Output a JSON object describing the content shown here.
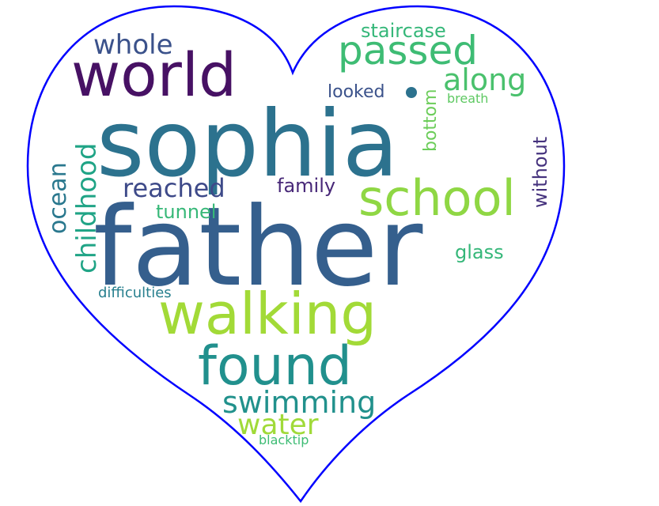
{
  "heart": {
    "stroke_color": "#0000ff"
  },
  "words": [
    {
      "id": "sophia",
      "text": "sophia",
      "color": "#2c728e"
    },
    {
      "id": "father",
      "text": "father",
      "color": "#355f8d"
    },
    {
      "id": "world",
      "text": "world",
      "color": "#471164"
    },
    {
      "id": "passed",
      "text": "passed",
      "color": "#3ebc74"
    },
    {
      "id": "school",
      "text": "school",
      "color": "#8fd744"
    },
    {
      "id": "walking",
      "text": "walking",
      "color": "#a2da37"
    },
    {
      "id": "found",
      "text": "found",
      "color": "#21908d"
    },
    {
      "id": "whole",
      "text": "whole",
      "color": "#3b528b"
    },
    {
      "id": "staircase",
      "text": "staircase",
      "color": "#35b779"
    },
    {
      "id": "along",
      "text": "along",
      "color": "#4ac16d"
    },
    {
      "id": "looked",
      "text": "looked",
      "color": "#3b528b"
    },
    {
      "id": "breath",
      "text": "breath",
      "color": "#5ec962"
    },
    {
      "id": "bottom",
      "text": "bottom",
      "color": "#6ccd5a"
    },
    {
      "id": "childhood",
      "text": "childhood",
      "color": "#20a486"
    },
    {
      "id": "ocean",
      "text": "ocean",
      "color": "#2a788e"
    },
    {
      "id": "reached",
      "text": "reached",
      "color": "#3e4a89"
    },
    {
      "id": "family",
      "text": "family",
      "color": "#482878"
    },
    {
      "id": "without",
      "text": "without",
      "color": "#46337e"
    },
    {
      "id": "tunnel",
      "text": "tunnel",
      "color": "#37b878"
    },
    {
      "id": "glass",
      "text": "glass",
      "color": "#35b779"
    },
    {
      "id": "difficulties",
      "text": "difficulties",
      "color": "#277f8e"
    },
    {
      "id": "swimming",
      "text": "swimming",
      "color": "#21918c"
    },
    {
      "id": "water",
      "text": "water",
      "color": "#a0da39"
    },
    {
      "id": "blacktip",
      "text": "blacktip",
      "color": "#3dbc74"
    }
  ],
  "dot": {
    "color": "#2c728e"
  }
}
